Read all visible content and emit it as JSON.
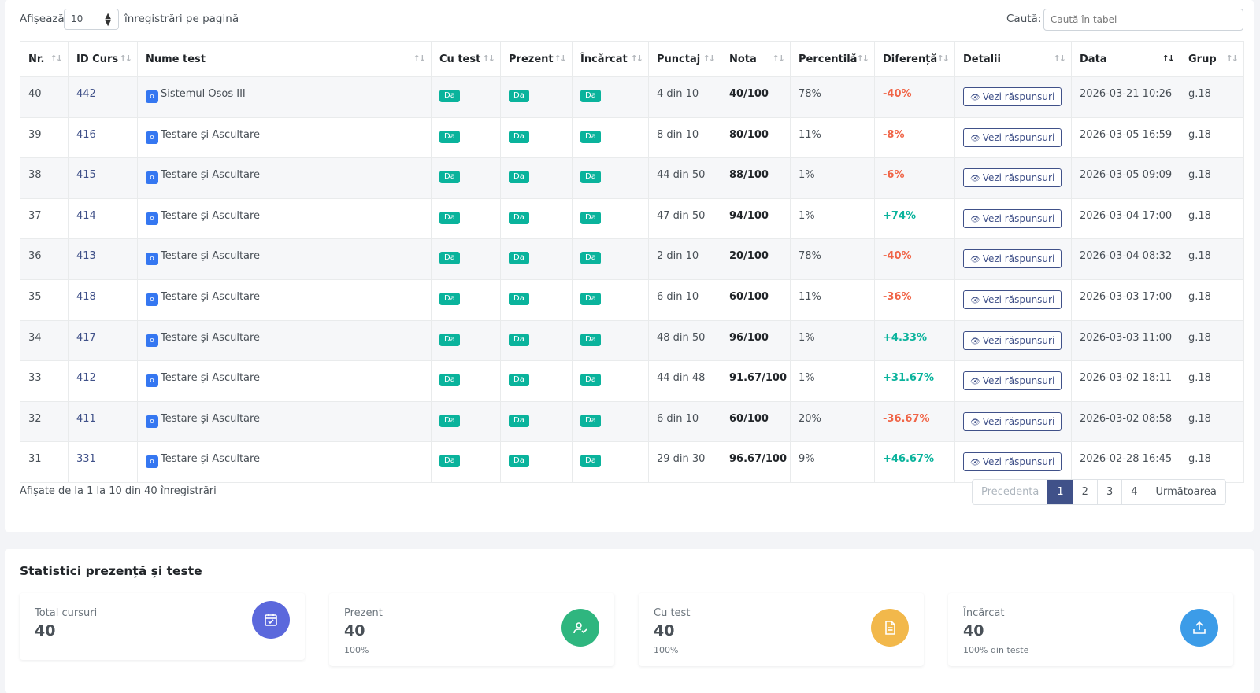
{
  "toolbar": {
    "show_label": "Afișează",
    "page_length": "10",
    "per_page_label": "înregistrări pe pagină",
    "search_label": "Caută:",
    "search_placeholder": "Caută în tabel",
    "search_value": ""
  },
  "table": {
    "columns": [
      "Nr.",
      "ID Curs",
      "Nume test",
      "Cu test",
      "Prezent",
      "Încărcat",
      "Punctaj",
      "Nota",
      "Percentilă",
      "Diferență",
      "Detalii",
      "Data",
      "Grup"
    ],
    "sorted_column": "Data",
    "test_icon_glyph": "o",
    "rows": [
      {
        "nr": "40",
        "id": "442",
        "name": "Sistemul Osos III",
        "cu_test": "Da",
        "prezent": "Da",
        "incarcat": "Da",
        "punctaj": "4 din 10",
        "nota": "40/100",
        "percentila": "78%",
        "diferenta": "-40%",
        "dir": "neg",
        "detalii": "Vezi răspunsuri",
        "data": "2026-03-21 10:26",
        "grup": "g.18"
      },
      {
        "nr": "39",
        "id": "416",
        "name": "Testare și Ascultare",
        "cu_test": "Da",
        "prezent": "Da",
        "incarcat": "Da",
        "punctaj": "8 din 10",
        "nota": "80/100",
        "percentila": "11%",
        "diferenta": "-8%",
        "dir": "neg",
        "detalii": "Vezi răspunsuri",
        "data": "2026-03-05 16:59",
        "grup": "g.18"
      },
      {
        "nr": "38",
        "id": "415",
        "name": "Testare și Ascultare",
        "cu_test": "Da",
        "prezent": "Da",
        "incarcat": "Da",
        "punctaj": "44 din 50",
        "nota": "88/100",
        "percentila": "1%",
        "diferenta": "-6%",
        "dir": "neg",
        "detalii": "Vezi răspunsuri",
        "data": "2026-03-05 09:09",
        "grup": "g.18"
      },
      {
        "nr": "37",
        "id": "414",
        "name": "Testare și Ascultare",
        "cu_test": "Da",
        "prezent": "Da",
        "incarcat": "Da",
        "punctaj": "47 din 50",
        "nota": "94/100",
        "percentila": "1%",
        "diferenta": "+74%",
        "dir": "pos",
        "detalii": "Vezi răspunsuri",
        "data": "2026-03-04 17:00",
        "grup": "g.18"
      },
      {
        "nr": "36",
        "id": "413",
        "name": "Testare și Ascultare",
        "cu_test": "Da",
        "prezent": "Da",
        "incarcat": "Da",
        "punctaj": "2 din 10",
        "nota": "20/100",
        "percentila": "78%",
        "diferenta": "-40%",
        "dir": "neg",
        "detalii": "Vezi răspunsuri",
        "data": "2026-03-04 08:32",
        "grup": "g.18"
      },
      {
        "nr": "35",
        "id": "418",
        "name": "Testare și Ascultare",
        "cu_test": "Da",
        "prezent": "Da",
        "incarcat": "Da",
        "punctaj": "6 din 10",
        "nota": "60/100",
        "percentila": "11%",
        "diferenta": "-36%",
        "dir": "neg",
        "detalii": "Vezi răspunsuri",
        "data": "2026-03-03 17:00",
        "grup": "g.18"
      },
      {
        "nr": "34",
        "id": "417",
        "name": "Testare și Ascultare",
        "cu_test": "Da",
        "prezent": "Da",
        "incarcat": "Da",
        "punctaj": "48 din 50",
        "nota": "96/100",
        "percentila": "1%",
        "diferenta": "+4.33%",
        "dir": "pos",
        "detalii": "Vezi răspunsuri",
        "data": "2026-03-03 11:00",
        "grup": "g.18"
      },
      {
        "nr": "33",
        "id": "412",
        "name": "Testare și Ascultare",
        "cu_test": "Da",
        "prezent": "Da",
        "incarcat": "Da",
        "punctaj": "44 din 48",
        "nota": "91.67/100",
        "percentila": "1%",
        "diferenta": "+31.67%",
        "dir": "pos",
        "detalii": "Vezi răspunsuri",
        "data": "2026-03-02 18:11",
        "grup": "g.18"
      },
      {
        "nr": "32",
        "id": "411",
        "name": "Testare și Ascultare",
        "cu_test": "Da",
        "prezent": "Da",
        "incarcat": "Da",
        "punctaj": "6 din 10",
        "nota": "60/100",
        "percentila": "20%",
        "diferenta": "-36.67%",
        "dir": "neg",
        "detalii": "Vezi răspunsuri",
        "data": "2026-03-02 08:58",
        "grup": "g.18"
      },
      {
        "nr": "31",
        "id": "331",
        "name": "Testare și Ascultare",
        "cu_test": "Da",
        "prezent": "Da",
        "incarcat": "Da",
        "punctaj": "29 din 30",
        "nota": "96.67/100",
        "percentila": "9%",
        "diferenta": "+46.67%",
        "dir": "pos",
        "detalii": "Vezi răspunsuri",
        "data": "2026-02-28 16:45",
        "grup": "g.18"
      }
    ]
  },
  "footer": {
    "info": "Afișate de la 1 la 10 din 40 înregistrări",
    "pages": [
      "Precedenta",
      "1",
      "2",
      "3",
      "4",
      "Următoarea"
    ],
    "active_page": "1"
  },
  "stats": {
    "title": "Statistici prezență și teste",
    "cards": [
      {
        "label": "Total cursuri",
        "value": "40",
        "sub": "",
        "icon": "calendar-check-icon",
        "color": "#5b68dc"
      },
      {
        "label": "Prezent",
        "value": "40",
        "sub": "100%",
        "icon": "user-check-icon",
        "color": "#2fb67f"
      },
      {
        "label": "Cu test",
        "value": "40",
        "sub": "100%",
        "icon": "document-icon",
        "color": "#f2b84b"
      },
      {
        "label": "Încărcat",
        "value": "40",
        "sub": "100% din teste",
        "icon": "upload-icon",
        "color": "#3c9ce8"
      }
    ]
  },
  "colors": {
    "primary": "#405189",
    "success": "#0ab39c",
    "danger": "#f06548",
    "info": "#3577f1"
  }
}
